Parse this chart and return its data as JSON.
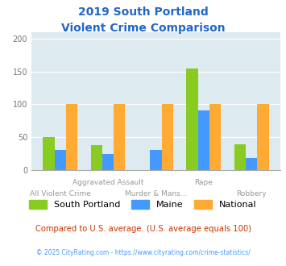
{
  "title_line1": "2019 South Portland",
  "title_line2": "Violent Crime Comparison",
  "categories_top": [
    "",
    "Aggravated Assault",
    "",
    "Rape",
    ""
  ],
  "categories_bot": [
    "All Violent Crime",
    "",
    "Murder & Mans...",
    "",
    "Robbery"
  ],
  "south_portland": [
    51,
    38,
    0,
    155,
    40
  ],
  "maine": [
    31,
    25,
    31,
    91,
    18
  ],
  "national": [
    100,
    100,
    100,
    100,
    100
  ],
  "colors": {
    "south_portland": "#88cc22",
    "maine": "#4499ff",
    "national": "#ffaa33"
  },
  "ylim": [
    0,
    210
  ],
  "yticks": [
    0,
    50,
    100,
    150,
    200
  ],
  "title_color": "#2266cc",
  "bg_color": "#ddeaf0",
  "footer_text": "Compared to U.S. average. (U.S. average equals 100)",
  "credit_text": "© 2025 CityRating.com - https://www.cityrating.com/crime-statistics/",
  "footer_color": "#cc3300",
  "credit_color": "#4499ff",
  "label_color": "#999999"
}
